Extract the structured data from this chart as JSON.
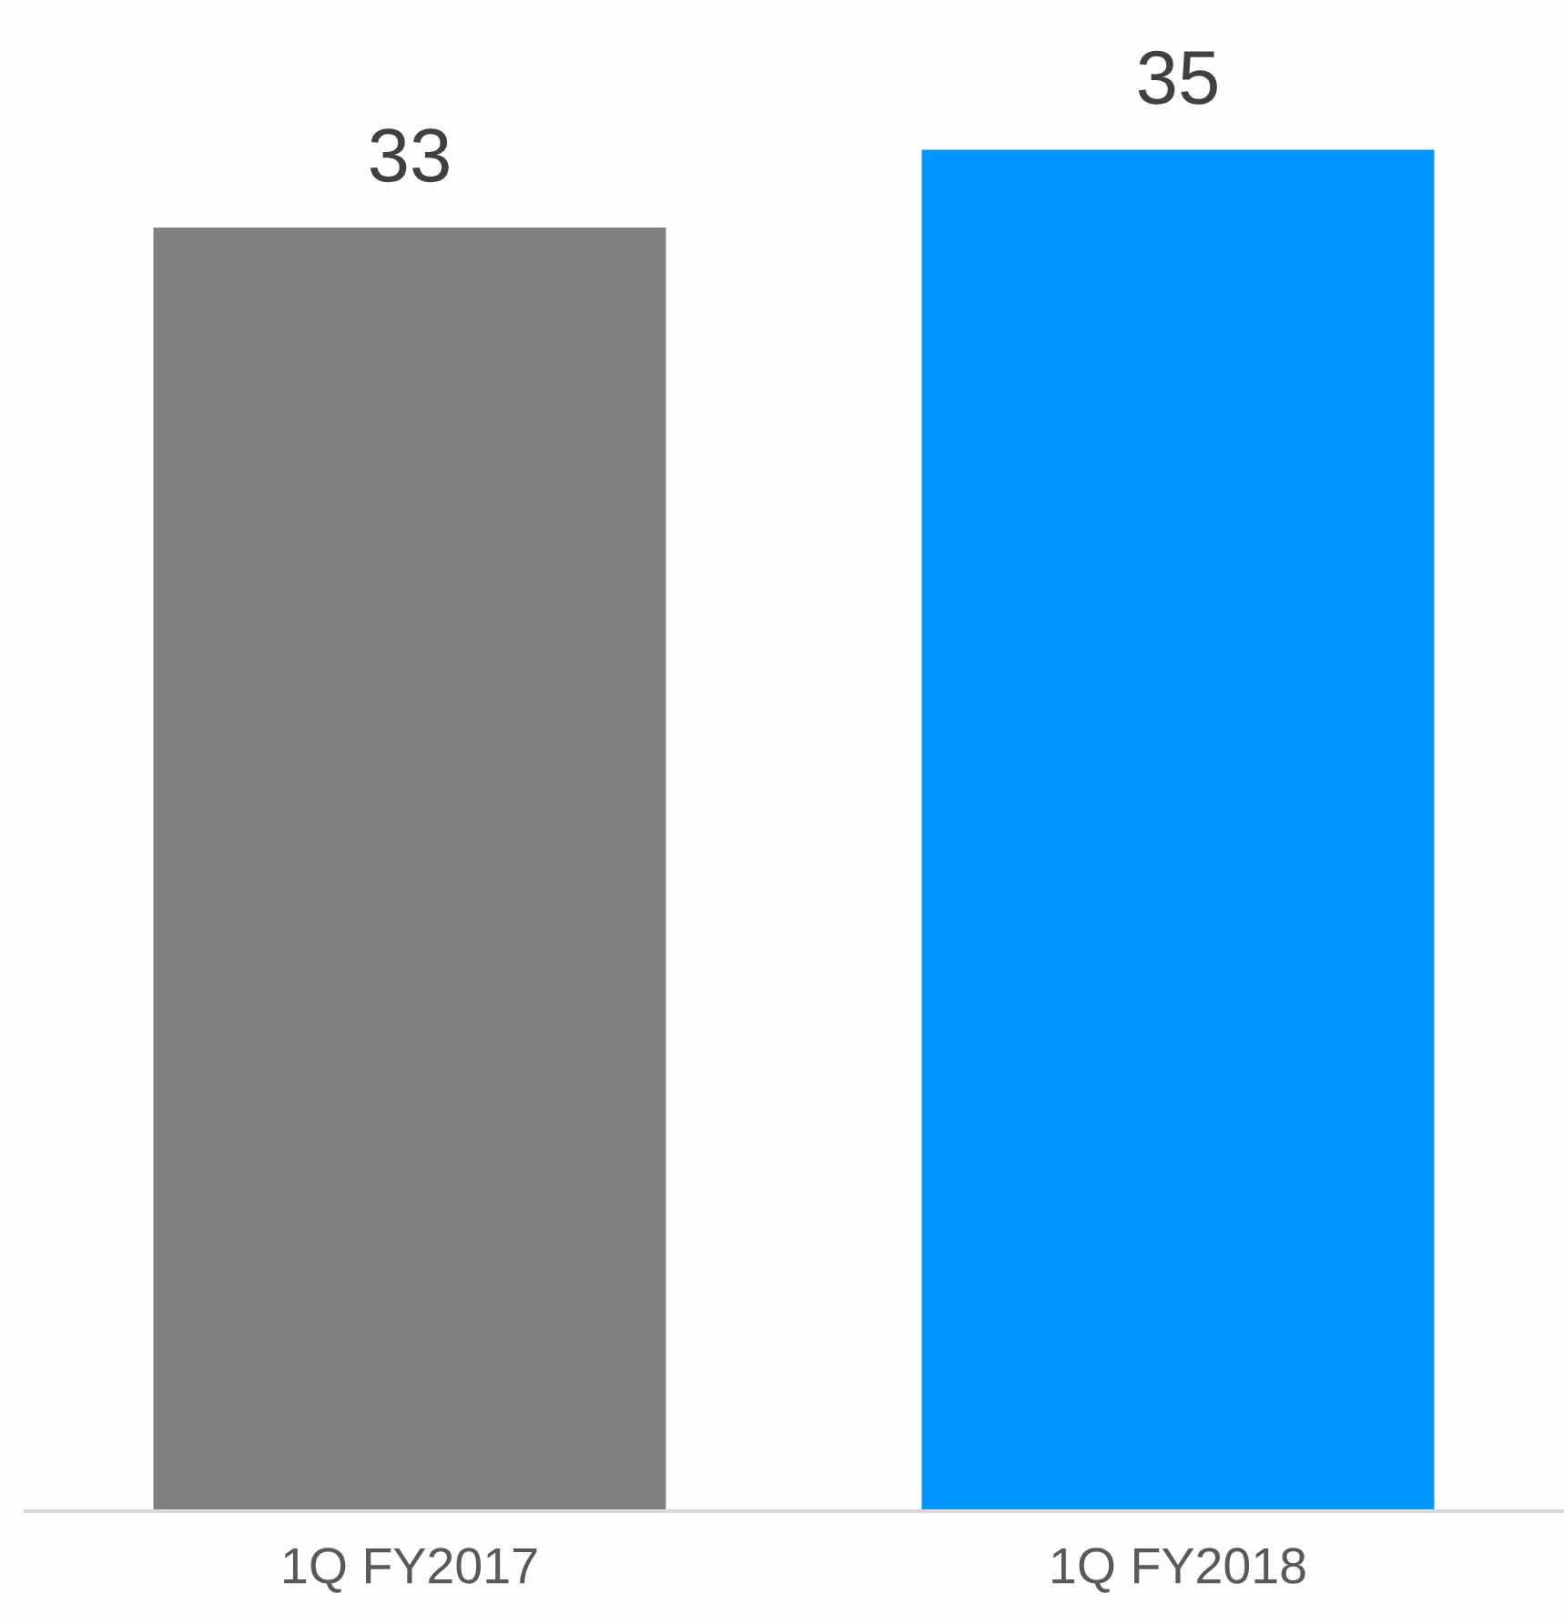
{
  "chart_data": {
    "type": "bar",
    "categories": [
      "1Q FY2017",
      "1Q FY2018"
    ],
    "values": [
      33,
      35
    ],
    "colors": [
      "#7f7f7f",
      "#0096ff"
    ],
    "data_labels": true,
    "tick_labels": "x"
  }
}
